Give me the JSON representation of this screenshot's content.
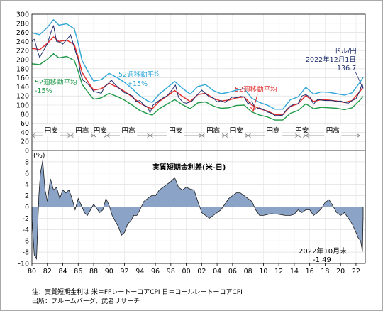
{
  "chart_data": [
    {
      "type": "line",
      "title": "",
      "xlabel": "",
      "ylabel": "",
      "xlim": [
        1980.0,
        2023.2
      ],
      "ylim": [
        0,
        300
      ],
      "y_ticks": [
        "300",
        "280",
        "260",
        "240",
        "220",
        "200",
        "180",
        "160",
        "140",
        "120",
        "100",
        "80",
        "60",
        "40",
        "20",
        "0"
      ],
      "series": [
        {
          "name": "ドル/円",
          "color": "#1f2e6e",
          "x": [
            1980.0,
            1980.3,
            1980.8,
            1981.0,
            1981.5,
            1982.0,
            1982.5,
            1982.8,
            1983.2,
            1983.7,
            1984.0,
            1984.3,
            1984.8,
            1985.0,
            1985.3,
            1985.7,
            1986.0,
            1986.3,
            1986.6,
            1987.0,
            1987.5,
            1988.0,
            1988.5,
            1989.0,
            1989.4,
            1989.8,
            1990.3,
            1990.8,
            1991.3,
            1992.0,
            1992.5,
            1993.0,
            1993.5,
            1994.0,
            1994.5,
            1995.0,
            1995.3,
            1995.7,
            1996.3,
            1997.0,
            1997.5,
            1998.0,
            1998.6,
            1999.0,
            1999.6,
            2000.0,
            2000.7,
            2001.3,
            2002.0,
            2002.5,
            2003.0,
            2003.5,
            2004.0,
            2004.5,
            2005.0,
            2005.5,
            2006.0,
            2006.5,
            2007.0,
            2007.5,
            2008.0,
            2008.5,
            2009.0,
            2009.5,
            2010.0,
            2010.5,
            2011.0,
            2011.5,
            2012.0,
            2012.5,
            2013.0,
            2013.5,
            2014.0,
            2014.5,
            2015.0,
            2015.5,
            2016.0,
            2016.5,
            2017.0,
            2017.5,
            2018.0,
            2018.5,
            2019.0,
            2019.5,
            2020.0,
            2020.5,
            2021.0,
            2021.5,
            2022.0,
            2022.4,
            2022.8,
            2022.92
          ],
          "values": [
            240,
            245,
            215,
            205,
            220,
            235,
            262,
            275,
            240,
            238,
            234,
            240,
            250,
            255,
            238,
            215,
            200,
            170,
            155,
            150,
            142,
            130,
            128,
            126,
            140,
            146,
            155,
            145,
            137,
            127,
            125,
            120,
            108,
            110,
            100,
            96,
            83,
            100,
            108,
            116,
            120,
            130,
            144,
            117,
            106,
            104,
            108,
            120,
            133,
            125,
            118,
            116,
            107,
            110,
            106,
            112,
            118,
            116,
            119,
            118,
            103,
            108,
            91,
            94,
            90,
            85,
            82,
            77,
            77,
            78,
            90,
            98,
            102,
            103,
            120,
            123,
            118,
            102,
            112,
            111,
            110,
            110,
            110,
            108,
            109,
            106,
            104,
            110,
            114,
            128,
            147,
            136.7
          ]
        },
        {
          "name": "52週移動平均",
          "color": "#e03030",
          "x": [
            1980.0,
            1981.0,
            1982.0,
            1982.8,
            1983.5,
            1984.5,
            1985.5,
            1986.0,
            1986.5,
            1987.0,
            1987.5,
            1988.0,
            1989.0,
            1990.0,
            1991.0,
            1992.0,
            1993.0,
            1994.0,
            1995.0,
            1995.6,
            1996.5,
            1997.5,
            1998.5,
            1999.5,
            2000.5,
            2001.5,
            2002.5,
            2003.5,
            2004.5,
            2005.5,
            2006.5,
            2007.5,
            2008.5,
            2009.5,
            2010.5,
            2011.5,
            2012.5,
            2013.5,
            2014.5,
            2015.5,
            2016.5,
            2017.5,
            2018.5,
            2019.5,
            2020.5,
            2021.5,
            2022.5,
            2022.92
          ],
          "values": [
            225,
            222,
            236,
            250,
            240,
            243,
            233,
            205,
            172,
            158,
            145,
            133,
            136,
            148,
            140,
            130,
            118,
            104,
            95,
            92,
            108,
            120,
            132,
            119,
            108,
            123,
            126,
            115,
            109,
            111,
            116,
            118,
            100,
            92,
            87,
            79,
            79,
            97,
            103,
            121,
            108,
            112,
            111,
            109,
            106,
            110,
            130,
            140
          ]
        },
        {
          "name": "52週移動平均+15%",
          "color": "#2fa7d7",
          "x": [
            1980.0,
            1981.0,
            1982.0,
            1982.8,
            1983.5,
            1984.5,
            1985.5,
            1986.0,
            1986.5,
            1987.0,
            1987.5,
            1988.0,
            1989.0,
            1990.0,
            1991.0,
            1992.0,
            1993.0,
            1994.0,
            1995.0,
            1995.6,
            1996.5,
            1997.5,
            1998.5,
            1999.5,
            2000.5,
            2001.5,
            2002.5,
            2003.5,
            2004.5,
            2005.5,
            2006.5,
            2007.5,
            2008.5,
            2009.5,
            2010.5,
            2011.5,
            2012.5,
            2013.5,
            2014.5,
            2015.5,
            2016.5,
            2017.5,
            2018.5,
            2019.5,
            2020.5,
            2021.5,
            2022.5,
            2022.92
          ],
          "values": [
            259,
            255,
            271,
            288,
            276,
            279,
            268,
            236,
            198,
            182,
            167,
            153,
            156,
            170,
            161,
            150,
            136,
            120,
            109,
            106,
            124,
            138,
            152,
            137,
            124,
            141,
            145,
            132,
            125,
            128,
            133,
            136,
            115,
            106,
            100,
            91,
            91,
            112,
            118,
            139,
            124,
            129,
            128,
            125,
            122,
            127,
            150,
            161
          ]
        },
        {
          "name": "52週移動平均-15%",
          "color": "#1f9a48",
          "x": [
            1980.0,
            1981.0,
            1982.0,
            1982.8,
            1983.5,
            1984.5,
            1985.5,
            1986.0,
            1986.5,
            1987.0,
            1987.5,
            1988.0,
            1989.0,
            1990.0,
            1991.0,
            1992.0,
            1993.0,
            1994.0,
            1995.0,
            1995.6,
            1996.5,
            1997.5,
            1998.5,
            1999.5,
            2000.5,
            2001.5,
            2002.5,
            2003.5,
            2004.5,
            2005.5,
            2006.5,
            2007.5,
            2008.5,
            2009.5,
            2010.5,
            2011.5,
            2012.5,
            2013.5,
            2014.5,
            2015.5,
            2016.5,
            2017.5,
            2018.5,
            2019.5,
            2020.5,
            2021.5,
            2022.5,
            2022.92
          ],
          "values": [
            191,
            189,
            201,
            213,
            204,
            207,
            198,
            174,
            146,
            134,
            123,
            113,
            116,
            126,
            119,
            111,
            100,
            88,
            81,
            78,
            92,
            102,
            112,
            101,
            92,
            105,
            107,
            98,
            93,
            94,
            99,
            100,
            85,
            78,
            74,
            67,
            67,
            82,
            88,
            103,
            92,
            95,
            94,
            93,
            90,
            94,
            111,
            119
          ]
        }
      ],
      "annotations": [
        {
          "text": "ドル/円",
          "color": "#1f2e6e"
        },
        {
          "text": "2022年12月1日",
          "color": "#1f2e6e"
        },
        {
          "text": "136.7",
          "color": "#1f2e6e"
        },
        {
          "text": "52週移動平均",
          "color": "#2fa7d7"
        },
        {
          "text": "+15%",
          "color": "#2fa7d7"
        },
        {
          "text": "52週移動平均",
          "color": "#1f9a48"
        },
        {
          "text": "-15%",
          "color": "#1f9a48"
        },
        {
          "text": "52週移動平均",
          "color": "#e03030"
        }
      ],
      "eras": [
        {
          "label": "円安",
          "from": 1980.0,
          "to": 1985.0
        },
        {
          "label": "円高",
          "from": 1985.0,
          "to": 1988.0
        },
        {
          "label": "円安",
          "from": 1988.0,
          "to": 1989.7
        },
        {
          "label": "円高",
          "from": 1989.7,
          "to": 1995.3
        },
        {
          "label": "円安",
          "from": 1995.3,
          "to": 2002.0
        },
        {
          "label": "円高",
          "from": 2002.0,
          "to": 2005.0
        },
        {
          "label": "円安",
          "from": 2005.0,
          "to": 2008.0
        },
        {
          "label": "円高",
          "from": 2008.0,
          "to": 2014.5
        },
        {
          "label": "円安",
          "from": 2014.5,
          "to": 2015.5
        },
        {
          "label": "円高",
          "from": 2015.5,
          "to": 2022.5
        }
      ]
    },
    {
      "type": "area",
      "title": "実質短期金利差(米-日)",
      "xlabel": "",
      "ylabel": "(%)",
      "xlim": [
        1980.0,
        2023.2
      ],
      "ylim": [
        -10,
        10
      ],
      "y_ticks": [
        "10",
        "8",
        "6",
        "4",
        "2",
        "0",
        "-2",
        "-4",
        "-6",
        "-8",
        "-10"
      ],
      "x_ticks": [
        "80",
        "82",
        "84",
        "86",
        "88",
        "90",
        "92",
        "94",
        "96",
        "98",
        "00",
        "02",
        "04",
        "06",
        "08",
        "10",
        "12",
        "14",
        "16",
        "18",
        "20",
        "22"
      ],
      "series": [
        {
          "name": "実質短期金利差(米-日)",
          "color": "#8aa3c7",
          "x": [
            1980.0,
            1980.3,
            1980.6,
            1980.9,
            1981.1,
            1981.4,
            1981.7,
            1982.0,
            1982.4,
            1982.8,
            1983.2,
            1983.6,
            1984.0,
            1984.4,
            1984.8,
            1985.2,
            1985.6,
            1986.0,
            1986.4,
            1986.8,
            1987.2,
            1987.6,
            1988.0,
            1988.4,
            1988.8,
            1989.2,
            1989.6,
            1990.0,
            1990.4,
            1990.8,
            1991.2,
            1991.6,
            1992.0,
            1992.4,
            1992.8,
            1993.2,
            1993.6,
            1994.0,
            1994.5,
            1995.0,
            1995.5,
            1996.0,
            1996.5,
            1997.0,
            1997.5,
            1998.0,
            1998.5,
            1999.0,
            1999.5,
            2000.0,
            2000.5,
            2001.0,
            2001.5,
            2002.0,
            2002.5,
            2003.0,
            2003.5,
            2004.0,
            2004.5,
            2005.0,
            2005.5,
            2006.0,
            2006.5,
            2007.0,
            2007.5,
            2008.0,
            2008.5,
            2009.0,
            2009.5,
            2010.0,
            2011.0,
            2012.0,
            2012.8,
            2013.5,
            2014.0,
            2014.5,
            2015.0,
            2015.5,
            2016.0,
            2016.5,
            2017.0,
            2017.5,
            2018.0,
            2018.5,
            2019.0,
            2019.5,
            2020.0,
            2020.5,
            2021.0,
            2021.5,
            2022.0,
            2022.3,
            2022.6,
            2022.83,
            2022.92
          ],
          "values": [
            -2,
            -8.5,
            -9.2,
            2,
            6,
            8.2,
            3,
            1,
            5,
            3,
            3.5,
            1.5,
            3,
            2.5,
            3,
            1.5,
            -0.5,
            1.5,
            0.3,
            -1,
            -1.5,
            -0.5,
            0.5,
            -0.3,
            -1,
            -0.5,
            1.5,
            0.3,
            -1.5,
            -2.5,
            -3.5,
            -5,
            -4.5,
            -3,
            -2.5,
            -1.5,
            -1.5,
            -0.5,
            1,
            1.5,
            2,
            2,
            3,
            3.5,
            4,
            4.5,
            5.2,
            3.5,
            3,
            3.5,
            3.2,
            3,
            1,
            -1,
            -1.5,
            -2,
            -1.5,
            -1,
            -0.5,
            0.5,
            1.5,
            2,
            2.5,
            2.5,
            2,
            1.5,
            1,
            -0.5,
            -1.5,
            -1.5,
            -1.2,
            -1.3,
            -1.5,
            -1.5,
            -1.3,
            -0.5,
            -1,
            -0.5,
            -0.5,
            -1.5,
            -1,
            -0.3,
            0.8,
            1.3,
            0.2,
            -1,
            -1.5,
            -1,
            -2,
            -3,
            -4.5,
            -5.5,
            -6,
            -7.9,
            -1.49
          ]
        }
      ],
      "annotations": [
        {
          "text": "2022年10月末",
          "color": "#000000"
        },
        {
          "text": "-1.49",
          "color": "#000000"
        }
      ]
    }
  ],
  "notes": {
    "line1": "注：実質短期金利は 米＝FFレートーコアCPI 日＝コールレートーコアCPI",
    "line2": "出所：ブルームバーグ、武者リサーチ"
  }
}
